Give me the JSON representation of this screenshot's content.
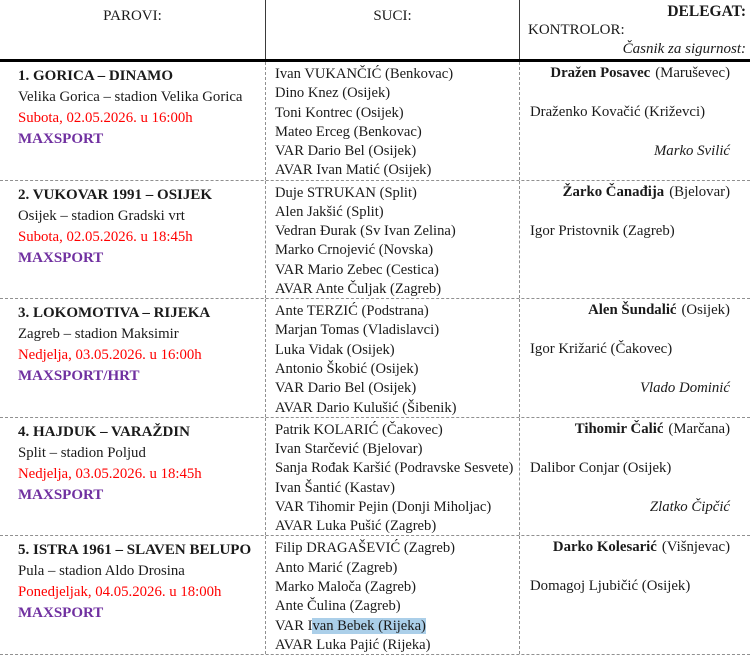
{
  "header": {
    "parovi": "PAROVI:",
    "suci": "SUCI:",
    "delegat": "DELEGAT:",
    "kontrolor": "KONTROLOR:",
    "casnik_za_sigurnost": "Časnik za sigurnost:"
  },
  "colors": {
    "datetime_red": "#ff0000",
    "broadcast_purple": "#7030a0",
    "selection_highlight_blue": "#abcfe9"
  },
  "matches": [
    {
      "title": "1. GORICA – DINAMO",
      "venue": "Velika Gorica – stadion Velika Gorica",
      "datetime": "Subota, 02.05.2026. u 16:00h",
      "broadcast": "MAXSPORT",
      "referees": [
        "Ivan VUKANČIĆ (Benkovac)",
        "Dino Knez (Osijek)",
        "Toni Kontrec (Osijek)",
        "Mateo Erceg (Benkovac)",
        "VAR Dario Bel (Osijek)",
        "AVAR Ivan Matić (Osijek)"
      ],
      "delegate": {
        "name": "Dražen Posavec",
        "city": "(Maruševec)"
      },
      "controller": "Draženko Kovačić (Križevci)",
      "security": "Marko Svilić"
    },
    {
      "title": "2. VUKOVAR 1991 – OSIJEK",
      "venue": "Osijek – stadion Gradski vrt",
      "datetime": "Subota, 02.05.2026. u 18:45h",
      "broadcast": "MAXSPORT",
      "referees": [
        "Duje STRUKAN (Split)",
        "Alen Jakšić (Split)",
        "Vedran Đurak (Sv Ivan Zelina)",
        "Marko Crnojević (Novska)",
        "VAR Mario Zebec (Cestica)",
        "AVAR Ante Čuljak (Zagreb)"
      ],
      "delegate": {
        "name": "Žarko Čanađija",
        "city": "(Bjelovar)"
      },
      "controller": "Igor Pristovnik (Zagreb)"
    },
    {
      "title": "3. LOKOMOTIVA – RIJEKA",
      "venue": "Zagreb – stadion Maksimir",
      "datetime": "Nedjelja, 03.05.2026. u 16:00h",
      "broadcast": "MAXSPORT/HRT",
      "referees": [
        "Ante TERZIĆ (Podstrana)",
        "Marjan Tomas (Vladislavci)",
        "Luka Vidak (Osijek)",
        "Antonio Škobić (Osijek)",
        "VAR Dario Bel (Osijek)",
        "AVAR Dario Kulušić (Šibenik)"
      ],
      "delegate": {
        "name": "Alen Šundalić",
        "city": "(Osijek)"
      },
      "controller": "Igor Križarić (Čakovec)",
      "security": "Vlado Dominić"
    },
    {
      "title": "4. HAJDUK – VARAŽDIN",
      "venue": "Split – stadion Poljud",
      "datetime": "Nedjelja, 03.05.2026. u 18:45h",
      "broadcast": "MAXSPORT",
      "referees": [
        "Patrik KOLARIĆ (Čakovec)",
        "Ivan Starčević (Bjelovar)",
        "Sanja Rođak Karšić (Podravske Sesvete)",
        "Ivan Šantić (Kastav)",
        "VAR Tihomir Pejin (Donji Miholjac)",
        "AVAR Luka Pušić (Zagreb)"
      ],
      "delegate": {
        "name": "Tihomir Čalić",
        "city": "(Marčana)"
      },
      "controller": "Dalibor Conjar (Osijek)",
      "security": "Zlatko Čipčić"
    },
    {
      "title": "5. ISTRA 1961 – SLAVEN BELUPO",
      "venue": "Pula – stadion Aldo Drosina",
      "datetime": "Ponedjeljak, 04.05.2026. u 18:00h",
      "broadcast": "MAXSPORT",
      "referees": [
        "Filip DRAGAŠEVIĆ (Zagreb)",
        "Anto Marić (Zagreb)",
        "Marko Maloča (Zagreb)",
        "Ante Čulina (Zagreb)",
        {
          "prefix": "VAR I",
          "highlighted": "van Bebek (Rijeka)"
        },
        "AVAR Luka Pajić (Rijeka)"
      ],
      "delegate": {
        "name": "Darko Kolesarić",
        "city": "(Višnjevac)"
      },
      "controller": "Domagoj Ljubičić (Osijek)"
    }
  ]
}
